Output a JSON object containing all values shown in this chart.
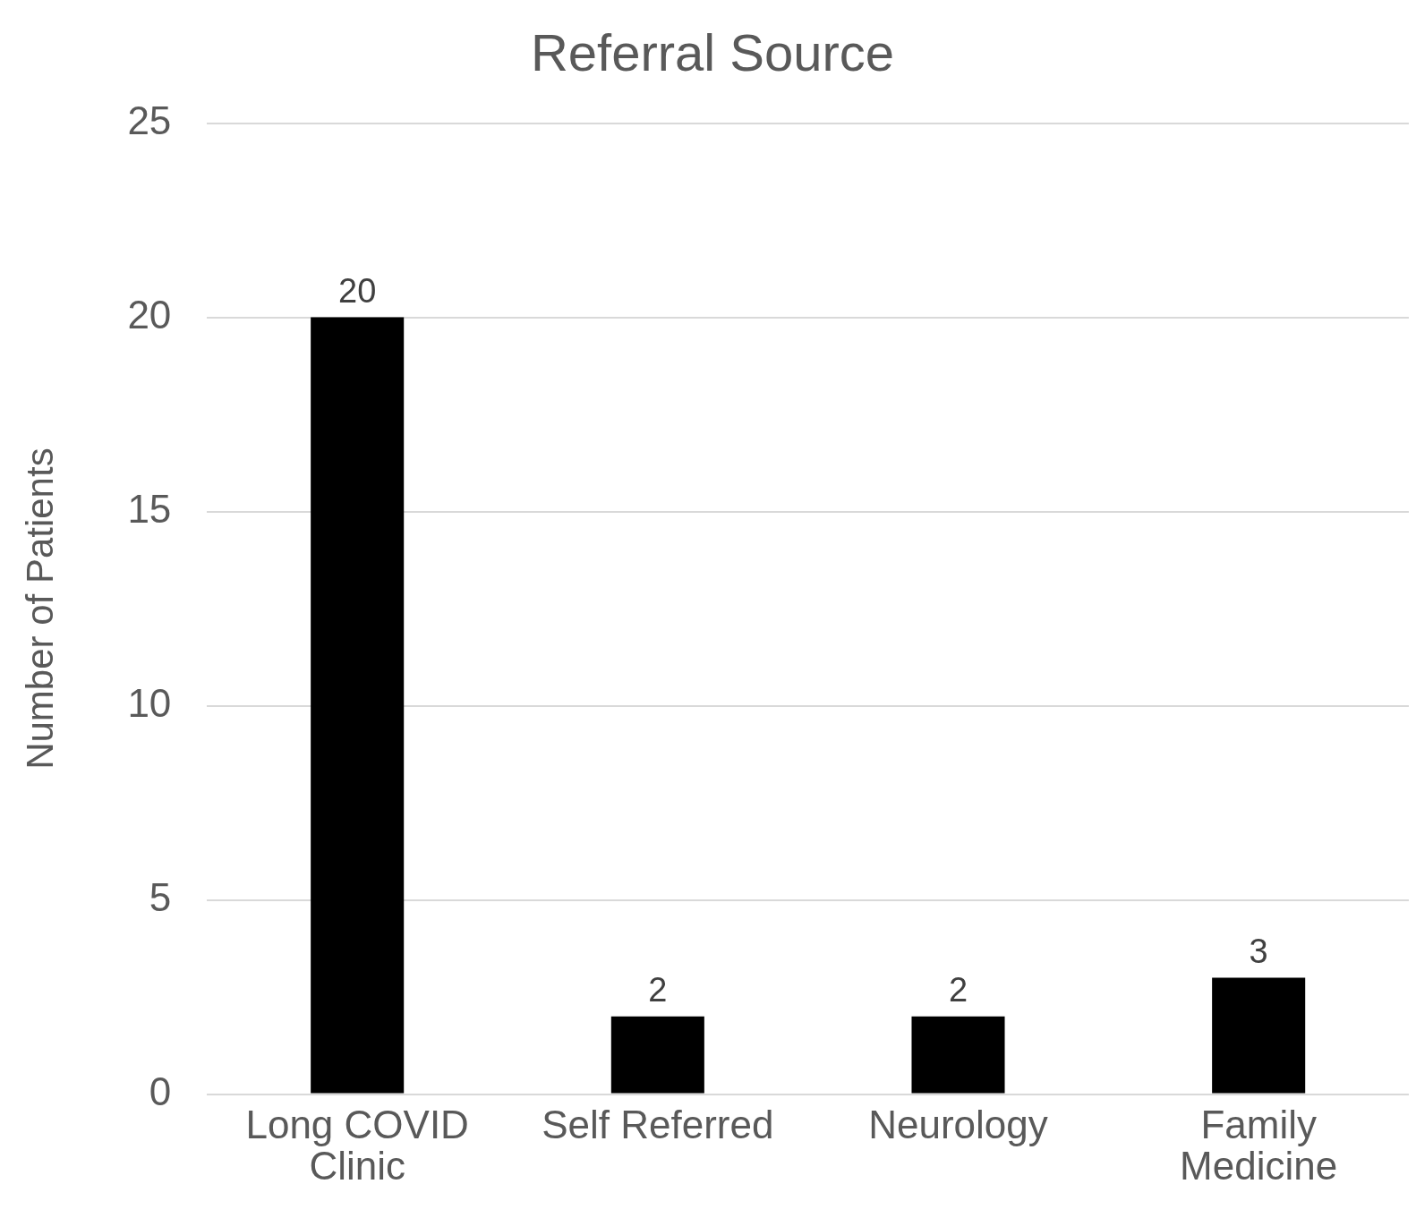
{
  "chart_data": {
    "type": "bar",
    "title": "Referral Source",
    "ylabel": "Number of Patients",
    "categories": [
      "Long COVID Clinic",
      "Self Referred",
      "Neurology",
      "Family Medicine"
    ],
    "values": [
      20,
      2,
      2,
      3
    ],
    "color": "#000000",
    "ylim": [
      0,
      25
    ],
    "yticks": [
      0,
      5,
      10,
      15,
      20,
      25
    ],
    "grid": "y",
    "legend": false,
    "data_labels": true
  }
}
